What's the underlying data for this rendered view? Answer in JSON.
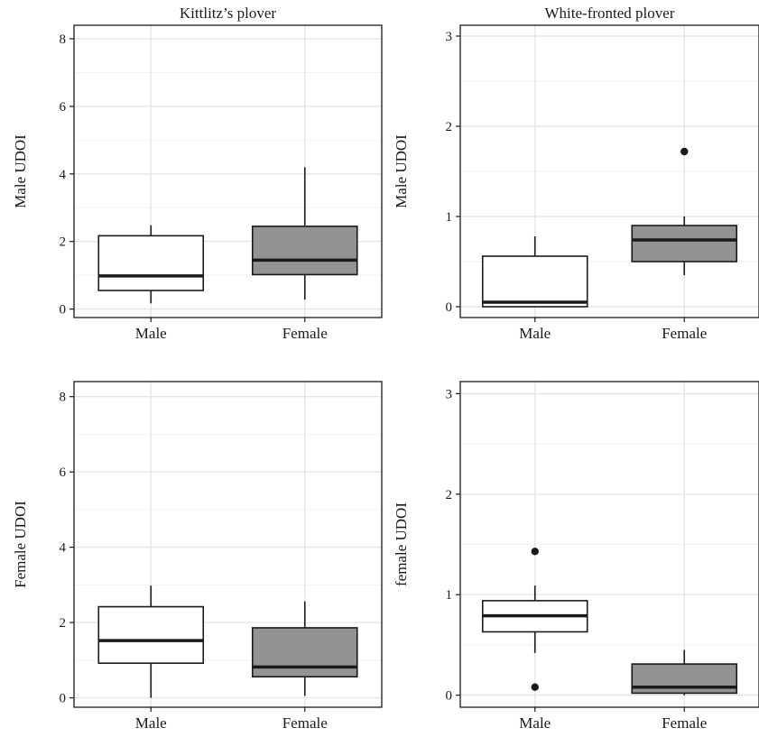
{
  "chart_data": [
    {
      "type": "box",
      "panel": "top-left",
      "title": "Kittlitz’s plover",
      "ylabel": "Male UDOI",
      "categories": [
        "Male",
        "Female"
      ],
      "ylim": [
        -0.25,
        8.4
      ],
      "yticks": [
        0,
        2,
        4,
        6,
        8
      ],
      "boxes": [
        {
          "category": "Male",
          "min": 0.17,
          "q1": 0.55,
          "median": 0.98,
          "q3": 2.17,
          "max": 2.48,
          "outliers": [],
          "fill": "#ffffff"
        },
        {
          "category": "Female",
          "min": 0.28,
          "q1": 1.02,
          "median": 1.45,
          "q3": 2.45,
          "max": 4.2,
          "outliers": [],
          "fill": "#939393"
        }
      ]
    },
    {
      "type": "box",
      "panel": "top-right",
      "title": "White-fronted plover",
      "ylabel": "Male UDOI",
      "categories": [
        "Male",
        "Female"
      ],
      "ylim": [
        -0.12,
        3.12
      ],
      "yticks": [
        0,
        1,
        2,
        3
      ],
      "boxes": [
        {
          "category": "Male",
          "min": 0.0,
          "q1": 0.0,
          "median": 0.05,
          "q3": 0.56,
          "max": 0.78,
          "outliers": [],
          "fill": "#ffffff"
        },
        {
          "category": "Female",
          "min": 0.35,
          "q1": 0.5,
          "median": 0.74,
          "q3": 0.9,
          "max": 1.0,
          "outliers": [
            1.72
          ],
          "fill": "#939393"
        }
      ]
    },
    {
      "type": "box",
      "panel": "bottom-left",
      "title": "",
      "ylabel": "Female UDOI",
      "categories": [
        "Male",
        "Female"
      ],
      "ylim": [
        -0.25,
        8.4
      ],
      "yticks": [
        0,
        2,
        4,
        6,
        8
      ],
      "boxes": [
        {
          "category": "Male",
          "min": 0.0,
          "q1": 0.92,
          "median": 1.52,
          "q3": 2.42,
          "max": 2.98,
          "outliers": [],
          "fill": "#ffffff"
        },
        {
          "category": "Female",
          "min": 0.05,
          "q1": 0.56,
          "median": 0.82,
          "q3": 1.86,
          "max": 2.56,
          "outliers": [],
          "fill": "#939393"
        }
      ]
    },
    {
      "type": "box",
      "panel": "bottom-right",
      "title": "",
      "ylabel": "female UDOI",
      "categories": [
        "Male",
        "Female"
      ],
      "ylim": [
        -0.12,
        3.12
      ],
      "yticks": [
        0,
        1,
        2,
        3
      ],
      "boxes": [
        {
          "category": "Male",
          "min": 0.42,
          "q1": 0.63,
          "median": 0.79,
          "q3": 0.94,
          "max": 1.09,
          "outliers": [
            1.43,
            0.08
          ],
          "fill": "#ffffff"
        },
        {
          "category": "Female",
          "min": 0.0,
          "q1": 0.02,
          "median": 0.08,
          "q3": 0.31,
          "max": 0.45,
          "outliers": [],
          "fill": "#939393"
        }
      ]
    }
  ],
  "style": {
    "panel_border": "#1a1a1a",
    "grid_major": "#e6e6e6",
    "grid_minor": "#f2f2f2",
    "box_line": "#1a1a1a"
  }
}
